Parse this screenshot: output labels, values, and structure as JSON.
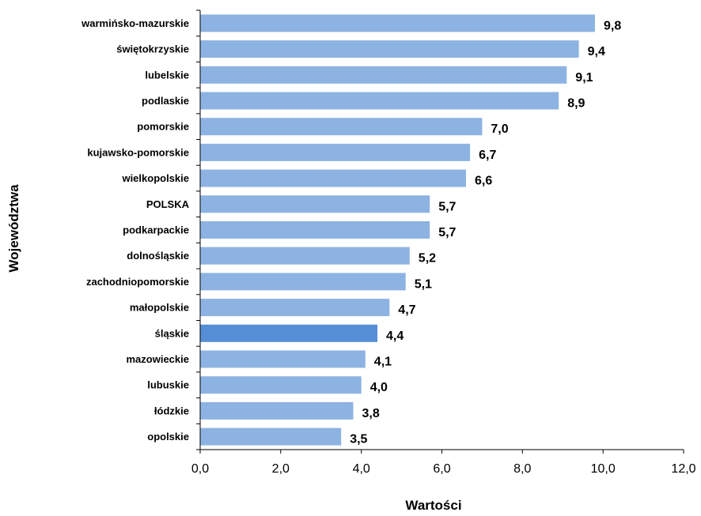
{
  "colors": {
    "bar": "#8DB3E2",
    "highlight_bar": "#558ED5",
    "axis": "#000000"
  },
  "chart_data": {
    "type": "bar",
    "orientation": "horizontal",
    "title": "",
    "xlabel": "Wartości",
    "ylabel": "Województwa",
    "xlim": [
      0,
      12
    ],
    "xticks": [
      "0,0",
      "2,0",
      "4,0",
      "6,0",
      "8,0",
      "10,0",
      "12,0"
    ],
    "grid": false,
    "legend": "none",
    "highlight_category": "śląskie",
    "categories": [
      "warmińsko-mazurskie",
      "świętokrzyskie",
      "lubelskie",
      "podlaskie",
      "pomorskie",
      "kujawsko-pomorskie",
      "wielkopolskie",
      "POLSKA",
      "podkarpackie",
      "dolnośląskie",
      "zachodniopomorskie",
      "małopolskie",
      "śląskie",
      "mazowieckie",
      "lubuskie",
      "łódzkie",
      "opolskie"
    ],
    "values": [
      9.8,
      9.4,
      9.1,
      8.9,
      7.0,
      6.7,
      6.6,
      5.7,
      5.7,
      5.2,
      5.1,
      4.7,
      4.4,
      4.1,
      4.0,
      3.8,
      3.5
    ],
    "value_labels": [
      "9,8",
      "9,4",
      "9,1",
      "8,9",
      "7,0",
      "6,7",
      "6,6",
      "5,7",
      "5,7",
      "5,2",
      "5,1",
      "4,7",
      "4,4",
      "4,1",
      "4,0",
      "3,8",
      "3,5"
    ]
  }
}
